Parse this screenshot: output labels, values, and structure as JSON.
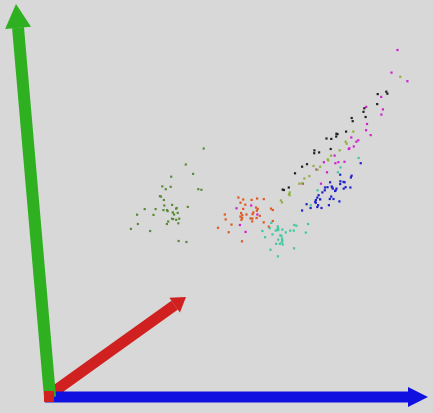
{
  "chart_data": {
    "type": "scatter",
    "title": "",
    "xlabel": "",
    "ylabel": "",
    "zlabel": "",
    "projection": "3d",
    "background": "#d8d8d8",
    "axes": [
      {
        "name": "x-axis",
        "color": "#1010e0"
      },
      {
        "name": "y-axis",
        "color": "#2fb020"
      },
      {
        "name": "z-axis",
        "color": "#d02020"
      }
    ],
    "series": [
      {
        "color": "#5a8a3a",
        "points": [
          [
            0.1,
            0.34,
            0.48
          ],
          [
            0.11,
            0.3,
            0.5
          ],
          [
            0.16,
            0.39,
            0.53
          ],
          [
            0.09,
            0.3,
            0.51
          ],
          [
            0.09,
            0.31,
            0.49
          ],
          [
            0.05,
            0.32,
            0.43
          ],
          [
            0.1,
            0.28,
            0.51
          ],
          [
            0.12,
            0.28,
            0.51
          ],
          [
            0.1,
            0.28,
            0.49
          ],
          [
            0.01,
            0.27,
            0.5
          ],
          [
            0.13,
            0.3,
            0.54
          ],
          [
            0.05,
            0.29,
            0.51
          ],
          [
            0.1,
            0.36,
            0.52
          ],
          [
            0.15,
            0.33,
            0.45
          ],
          [
            0.11,
            0.32,
            0.5
          ],
          [
            0.07,
            0.27,
            0.45
          ],
          [
            0.15,
            0.33,
            0.58
          ],
          [
            0.15,
            0.29,
            0.45
          ],
          [
            0.14,
            0.42,
            0.63
          ],
          [
            0.11,
            0.3,
            0.5
          ],
          [
            0.15,
            0.23,
            0.48
          ],
          [
            0.06,
            0.3,
            0.55
          ],
          [
            0.09,
            0.35,
            0.48
          ],
          [
            0.11,
            0.36,
            0.45
          ],
          [
            0.04,
            0.29,
            0.41
          ],
          [
            0.12,
            0.4,
            0.57
          ],
          [
            0.1,
            0.27,
            0.53
          ],
          [
            0.14,
            0.24,
            0.46
          ],
          [
            0.14,
            0.31,
            0.47
          ],
          [
            0.12,
            0.29,
            0.48
          ],
          [
            0.06,
            0.35,
            0.55
          ],
          [
            0.1,
            0.31,
            0.49
          ],
          [
            0.09,
            0.27,
            0.5
          ],
          [
            0.08,
            0.35,
            0.53
          ],
          [
            0.12,
            0.31,
            0.5
          ],
          [
            0.05,
            0.32,
            0.47
          ],
          [
            0.11,
            0.39,
            0.51
          ],
          [
            0.17,
            0.35,
            0.53
          ],
          [
            0.08,
            0.32,
            0.47
          ],
          [
            0.09,
            0.28,
            0.54
          ]
        ]
      },
      {
        "color": "#e05820",
        "points": [
          [
            0.28,
            0.28,
            0.65
          ],
          [
            0.28,
            0.27,
            0.53
          ],
          [
            0.27,
            0.24,
            0.64
          ],
          [
            0.27,
            0.21,
            0.54
          ],
          [
            0.29,
            0.28,
            0.54
          ],
          [
            0.26,
            0.26,
            0.57
          ],
          [
            0.24,
            0.29,
            0.62
          ],
          [
            0.32,
            0.29,
            0.54
          ],
          [
            0.31,
            0.23,
            0.63
          ],
          [
            0.23,
            0.28,
            0.54
          ],
          [
            0.3,
            0.27,
            0.54
          ],
          [
            0.27,
            0.24,
            0.6
          ],
          [
            0.3,
            0.26,
            0.57
          ],
          [
            0.23,
            0.23,
            0.55
          ],
          [
            0.27,
            0.28,
            0.55
          ],
          [
            0.32,
            0.23,
            0.59
          ],
          [
            0.33,
            0.27,
            0.6
          ],
          [
            0.29,
            0.23,
            0.62
          ],
          [
            0.29,
            0.27,
            0.57
          ],
          [
            0.29,
            0.28,
            0.59
          ],
          [
            0.26,
            0.3,
            0.57
          ],
          [
            0.25,
            0.28,
            0.61
          ],
          [
            0.29,
            0.3,
            0.6
          ],
          [
            0.27,
            0.26,
            0.61
          ],
          [
            0.25,
            0.26,
            0.58
          ],
          [
            0.25,
            0.26,
            0.59
          ],
          [
            0.24,
            0.25,
            0.55
          ],
          [
            0.25,
            0.31,
            0.58
          ],
          [
            0.26,
            0.24,
            0.62
          ],
          [
            0.3,
            0.28,
            0.58
          ],
          [
            0.23,
            0.26,
            0.5
          ],
          [
            0.22,
            0.26,
            0.56
          ],
          [
            0.28,
            0.3,
            0.59
          ],
          [
            0.32,
            0.27,
            0.61
          ],
          [
            0.26,
            0.28,
            0.58
          ]
        ]
      },
      {
        "color": "#40c8a0",
        "points": [
          [
            0.47,
            0.28,
            0.46
          ],
          [
            0.4,
            0.24,
            0.5
          ],
          [
            0.39,
            0.25,
            0.48
          ],
          [
            0.39,
            0.25,
            0.51
          ],
          [
            0.43,
            0.24,
            0.45
          ],
          [
            0.43,
            0.27,
            0.46
          ],
          [
            0.37,
            0.21,
            0.56
          ],
          [
            0.38,
            0.25,
            0.46
          ],
          [
            0.43,
            0.28,
            0.44
          ],
          [
            0.44,
            0.21,
            0.49
          ],
          [
            0.41,
            0.2,
            0.46
          ],
          [
            0.48,
            0.27,
            0.5
          ],
          [
            0.38,
            0.27,
            0.45
          ],
          [
            0.43,
            0.26,
            0.52
          ],
          [
            0.41,
            0.23,
            0.49
          ],
          [
            0.4,
            0.26,
            0.49
          ],
          [
            0.41,
            0.24,
            0.47
          ],
          [
            0.42,
            0.25,
            0.47
          ],
          [
            0.45,
            0.27,
            0.44
          ],
          [
            0.4,
            0.26,
            0.48
          ],
          [
            0.46,
            0.24,
            0.52
          ],
          [
            0.39,
            0.28,
            0.48
          ],
          [
            0.44,
            0.26,
            0.48
          ],
          [
            0.41,
            0.22,
            0.49
          ],
          [
            0.42,
            0.24,
            0.44
          ],
          [
            0.38,
            0.21,
            0.48
          ],
          [
            0.39,
            0.26,
            0.51
          ],
          [
            0.43,
            0.24,
            0.44
          ],
          [
            0.39,
            0.27,
            0.47
          ],
          [
            0.45,
            0.26,
            0.48
          ],
          [
            0.55,
            0.38,
            0.44
          ],
          [
            0.6,
            0.42,
            0.46
          ],
          [
            0.62,
            0.44,
            0.44
          ],
          [
            0.51,
            0.33,
            0.47
          ],
          [
            0.65,
            0.45,
            0.48
          ]
        ]
      },
      {
        "color": "#2020c8",
        "points": [
          [
            0.54,
            0.36,
            0.48
          ],
          [
            0.52,
            0.33,
            0.45
          ],
          [
            0.58,
            0.35,
            0.46
          ],
          [
            0.53,
            0.34,
            0.46
          ],
          [
            0.56,
            0.36,
            0.43
          ],
          [
            0.6,
            0.37,
            0.49
          ],
          [
            0.57,
            0.36,
            0.49
          ],
          [
            0.62,
            0.4,
            0.49
          ],
          [
            0.55,
            0.34,
            0.43
          ],
          [
            0.51,
            0.34,
            0.45
          ],
          [
            0.56,
            0.33,
            0.47
          ],
          [
            0.57,
            0.38,
            0.44
          ],
          [
            0.59,
            0.34,
            0.47
          ],
          [
            0.57,
            0.39,
            0.47
          ],
          [
            0.58,
            0.38,
            0.46
          ],
          [
            0.54,
            0.35,
            0.44
          ],
          [
            0.64,
            0.41,
            0.45
          ],
          [
            0.6,
            0.38,
            0.44
          ],
          [
            0.53,
            0.35,
            0.47
          ],
          [
            0.49,
            0.32,
            0.46
          ],
          [
            0.57,
            0.37,
            0.48
          ],
          [
            0.66,
            0.44,
            0.47
          ],
          [
            0.61,
            0.39,
            0.47
          ],
          [
            0.56,
            0.36,
            0.43
          ],
          [
            0.59,
            0.38,
            0.5
          ],
          [
            0.54,
            0.36,
            0.46
          ],
          [
            0.62,
            0.4,
            0.43
          ],
          [
            0.55,
            0.33,
            0.45
          ],
          [
            0.58,
            0.37,
            0.48
          ],
          [
            0.6,
            0.41,
            0.47
          ],
          [
            0.52,
            0.34,
            0.48
          ],
          [
            0.63,
            0.38,
            0.46
          ],
          [
            0.57,
            0.35,
            0.46
          ],
          [
            0.59,
            0.39,
            0.44
          ],
          [
            0.55,
            0.37,
            0.49
          ],
          [
            0.53,
            0.33,
            0.47
          ],
          [
            0.61,
            0.4,
            0.45
          ],
          [
            0.58,
            0.36,
            0.45
          ],
          [
            0.56,
            0.38,
            0.46
          ],
          [
            0.6,
            0.37,
            0.48
          ]
        ]
      },
      {
        "color": "#d020d0",
        "points": [
          [
            0.63,
            0.5,
            0.49
          ],
          [
            0.57,
            0.42,
            0.46
          ],
          [
            0.69,
            0.51,
            0.48
          ],
          [
            0.59,
            0.46,
            0.47
          ],
          [
            0.65,
            0.49,
            0.44
          ],
          [
            0.72,
            0.56,
            0.49
          ],
          [
            0.66,
            0.5,
            0.47
          ],
          [
            0.5,
            0.39,
            0.46
          ],
          [
            0.61,
            0.44,
            0.48
          ],
          [
            0.79,
            0.64,
            0.51
          ],
          [
            0.7,
            0.55,
            0.45
          ],
          [
            0.73,
            0.61,
            0.48
          ],
          [
            0.62,
            0.47,
            0.49
          ],
          [
            0.55,
            0.39,
            0.46
          ],
          [
            0.68,
            0.58,
            0.49
          ],
          [
            0.8,
            0.74,
            0.46
          ],
          [
            0.76,
            0.67,
            0.49
          ],
          [
            0.59,
            0.44,
            0.47
          ],
          [
            0.61,
            0.45,
            0.45
          ],
          [
            0.66,
            0.5,
            0.46
          ],
          [
            0.53,
            0.42,
            0.48
          ],
          [
            0.72,
            0.57,
            0.5
          ],
          [
            0.64,
            0.48,
            0.48
          ],
          [
            0.69,
            0.53,
            0.46
          ],
          [
            0.57,
            0.45,
            0.45
          ],
          [
            0.28,
            0.26,
            0.52
          ],
          [
            0.3,
            0.3,
            0.55
          ],
          [
            0.26,
            0.22,
            0.58
          ],
          [
            0.32,
            0.28,
            0.54
          ],
          [
            0.27,
            0.3,
            0.53
          ]
        ]
      },
      {
        "color": "#202020",
        "points": [
          [
            0.47,
            0.41,
            0.48
          ],
          [
            0.66,
            0.56,
            0.51
          ],
          [
            0.5,
            0.43,
            0.49
          ],
          [
            0.59,
            0.51,
            0.49
          ],
          [
            0.68,
            0.58,
            0.48
          ],
          [
            0.6,
            0.51,
            0.47
          ],
          [
            0.42,
            0.36,
            0.5
          ],
          [
            0.54,
            0.47,
            0.46
          ],
          [
            0.62,
            0.54,
            0.52
          ],
          [
            0.72,
            0.6,
            0.53
          ],
          [
            0.55,
            0.49,
            0.51
          ],
          [
            0.64,
            0.53,
            0.45
          ],
          [
            0.46,
            0.38,
            0.46
          ],
          [
            0.71,
            0.61,
            0.5
          ],
          [
            0.52,
            0.45,
            0.52
          ],
          [
            0.65,
            0.55,
            0.47
          ],
          [
            0.58,
            0.5,
            0.48
          ],
          [
            0.48,
            0.42,
            0.5
          ],
          [
            0.61,
            0.52,
            0.46
          ],
          [
            0.7,
            0.58,
            0.51
          ],
          [
            0.57,
            0.47,
            0.49
          ],
          [
            0.44,
            0.37,
            0.47
          ],
          [
            0.74,
            0.62,
            0.49
          ],
          [
            0.53,
            0.47,
            0.48
          ],
          [
            0.67,
            0.55,
            0.5
          ]
        ]
      },
      {
        "color": "#90b040",
        "points": [
          [
            0.47,
            0.37,
            0.44
          ],
          [
            0.52,
            0.41,
            0.46
          ],
          [
            0.6,
            0.47,
            0.48
          ],
          [
            0.44,
            0.35,
            0.45
          ],
          [
            0.5,
            0.4,
            0.47
          ],
          [
            0.56,
            0.44,
            0.49
          ],
          [
            0.63,
            0.5,
            0.46
          ],
          [
            0.48,
            0.38,
            0.49
          ],
          [
            0.55,
            0.43,
            0.45
          ],
          [
            0.58,
            0.46,
            0.47
          ],
          [
            0.45,
            0.36,
            0.48
          ],
          [
            0.53,
            0.42,
            0.5
          ],
          [
            0.66,
            0.53,
            0.45
          ],
          [
            0.49,
            0.39,
            0.46
          ],
          [
            0.61,
            0.48,
            0.5
          ],
          [
            0.42,
            0.33,
            0.49
          ],
          [
            0.54,
            0.44,
            0.45
          ],
          [
            0.57,
            0.45,
            0.47
          ],
          [
            0.8,
            0.67,
            0.46
          ],
          [
            0.46,
            0.36,
            0.46
          ]
        ]
      }
    ]
  }
}
